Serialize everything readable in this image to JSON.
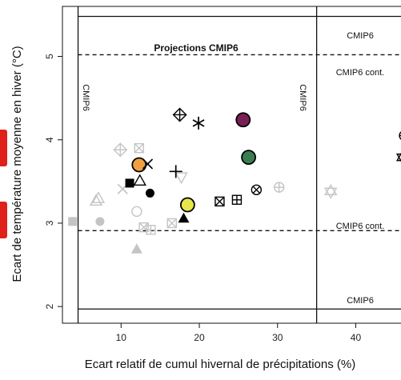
{
  "chart_data": {
    "type": "scatter",
    "xlabel": "Ecart relatif de cumul hivernal de précipitations (%)",
    "ylabel": "Ecart de température moyenne en hiver (°C)",
    "xlim": [
      2.5,
      46.5
    ],
    "ylim": [
      1.8,
      5.6
    ],
    "xticks": [
      10,
      20,
      30,
      40
    ],
    "yticks": [
      2,
      3,
      4,
      5
    ],
    "grid": false,
    "colors": {
      "grey": "#c4c4c4",
      "black": "#000000",
      "orange": "#f0a040",
      "yellow": "#e6e64b",
      "green": "#3a7d50",
      "purple": "#7a1f55"
    },
    "annotations": {
      "projections_label": "Projections CMIP6",
      "cmip6_top": "CMIP6",
      "cmip6_cont_top": "CMIP6 cont.",
      "cmip6_cont_bottom": "CMIP6 cont.",
      "cmip6_bottom": "CMIP6",
      "cmip6_left_vertical": "CMIP6",
      "cmip6_mid_vertical": "CMIP6"
    },
    "reference_lines": {
      "cmip6_x": [
        4.5,
        35.0
      ],
      "cmip6_y": [
        1.97,
        5.48
      ],
      "cmip6_cont_y": [
        2.91,
        5.02
      ]
    },
    "points": [
      {
        "x": 3.8,
        "y": 3.02,
        "marker": "square",
        "color": "grey"
      },
      {
        "x": 7.3,
        "y": 3.02,
        "marker": "circle",
        "color": "grey"
      },
      {
        "x": 6.8,
        "y": 3.27,
        "marker": "triangle-open",
        "color": "grey"
      },
      {
        "x": 7.1,
        "y": 3.3,
        "marker": "triangle-open",
        "color": "grey"
      },
      {
        "x": 9.9,
        "y": 3.88,
        "marker": "diamond-plus",
        "color": "grey"
      },
      {
        "x": 12.3,
        "y": 3.9,
        "marker": "square-x",
        "color": "grey"
      },
      {
        "x": 10.2,
        "y": 3.41,
        "marker": "x",
        "color": "grey"
      },
      {
        "x": 11.1,
        "y": 3.48,
        "marker": "square",
        "color": "black"
      },
      {
        "x": 12.4,
        "y": 3.51,
        "marker": "triangle-open",
        "color": "black"
      },
      {
        "x": 13.7,
        "y": 3.36,
        "marker": "circle",
        "color": "black"
      },
      {
        "x": 12.3,
        "y": 3.7,
        "marker": "circle",
        "color": "orange"
      },
      {
        "x": 13.4,
        "y": 3.71,
        "marker": "x",
        "color": "black"
      },
      {
        "x": 12.0,
        "y": 3.14,
        "marker": "circle-open",
        "color": "grey"
      },
      {
        "x": 12.0,
        "y": 2.69,
        "marker": "triangle",
        "color": "grey"
      },
      {
        "x": 12.9,
        "y": 2.95,
        "marker": "square-x",
        "color": "grey"
      },
      {
        "x": 13.8,
        "y": 2.92,
        "marker": "square-plus",
        "color": "grey"
      },
      {
        "x": 16.5,
        "y": 3.0,
        "marker": "square-x",
        "color": "grey"
      },
      {
        "x": 17.7,
        "y": 3.55,
        "marker": "triangle-down",
        "color": "grey"
      },
      {
        "x": 17.0,
        "y": 3.62,
        "marker": "plus",
        "color": "black"
      },
      {
        "x": 18.0,
        "y": 3.06,
        "marker": "triangle",
        "color": "black"
      },
      {
        "x": 18.5,
        "y": 3.22,
        "marker": "circle",
        "color": "yellow"
      },
      {
        "x": 17.5,
        "y": 4.3,
        "marker": "diamond-plus",
        "color": "black"
      },
      {
        "x": 19.9,
        "y": 4.2,
        "marker": "asterisk",
        "color": "black"
      },
      {
        "x": 22.6,
        "y": 3.26,
        "marker": "square-x",
        "color": "black"
      },
      {
        "x": 24.8,
        "y": 3.28,
        "marker": "square-plus",
        "color": "black"
      },
      {
        "x": 25.6,
        "y": 4.24,
        "marker": "circle",
        "color": "purple"
      },
      {
        "x": 26.3,
        "y": 3.79,
        "marker": "circle",
        "color": "green"
      },
      {
        "x": 27.3,
        "y": 3.4,
        "marker": "circle-x",
        "color": "black"
      },
      {
        "x": 30.2,
        "y": 3.43,
        "marker": "circle-plus",
        "color": "grey"
      },
      {
        "x": 36.8,
        "y": 3.38,
        "marker": "star-david",
        "color": "grey"
      },
      {
        "x": 46.2,
        "y": 4.05,
        "marker": "circle-plus",
        "color": "black"
      },
      {
        "x": 46.0,
        "y": 3.79,
        "marker": "star-david",
        "color": "black"
      }
    ]
  }
}
